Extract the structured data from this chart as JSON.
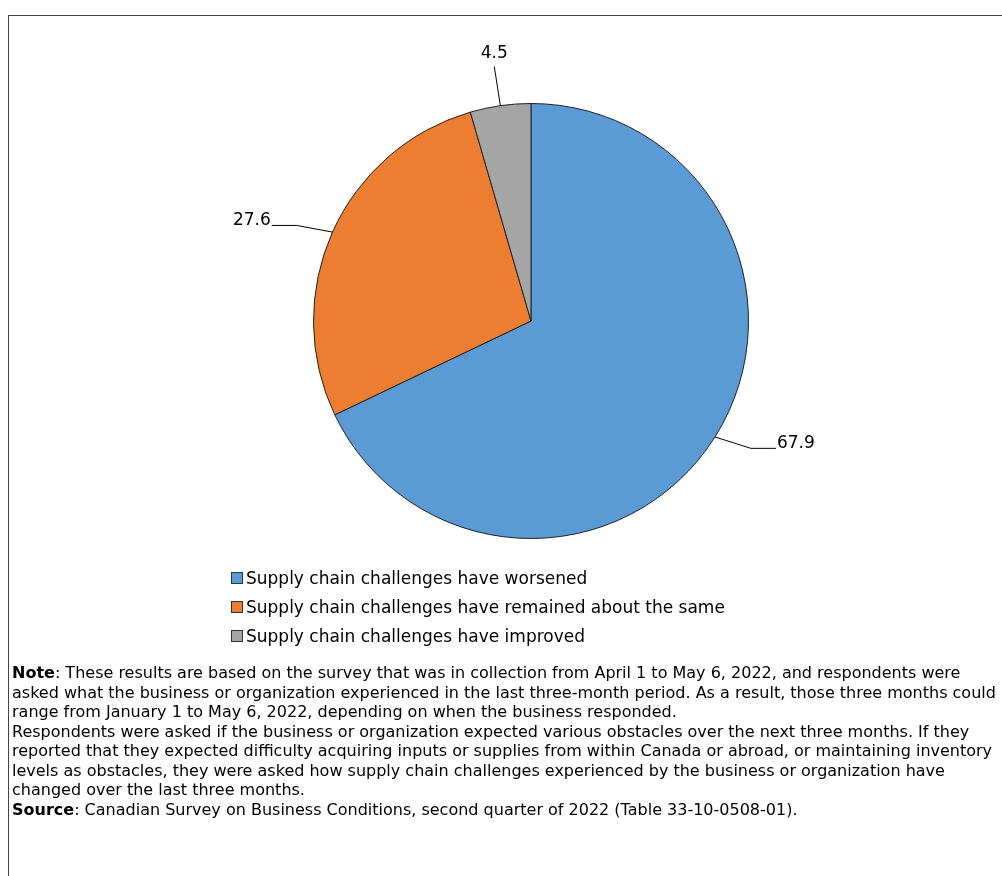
{
  "chart_data": {
    "type": "pie",
    "categories": [
      "Supply chain challenges have worsened",
      "Supply chain challenges have remained about the same",
      "Supply chain challenges have improved"
    ],
    "values": [
      67.9,
      27.6,
      4.5
    ],
    "colors": [
      "#5b9bd5",
      "#ed7d31",
      "#a5a5a5"
    ],
    "data_labels": true,
    "legend": "bottom",
    "annotations": [
      "Note: These results are based on the survey that was in collection from April 1 to May 6, 2022, and respondents were asked what the business or organization experienced in the last three-month period. As a result, those three months could range from January 1 to May 6, 2022, depending on when the business responded.",
      "Respondents were asked if the business or organization expected various obstacles over the next three months. If they reported that they expected difficulty acquiring inputs or supplies from within Canada or abroad, or maintaining inventory levels as obstacles, they were asked how supply chain challenges experienced by the business or organization have changed over the last three months.",
      "Source: Canadian Survey on Business Conditions, second quarter of 2022 (Table 33-10-0508-01)."
    ]
  }
}
